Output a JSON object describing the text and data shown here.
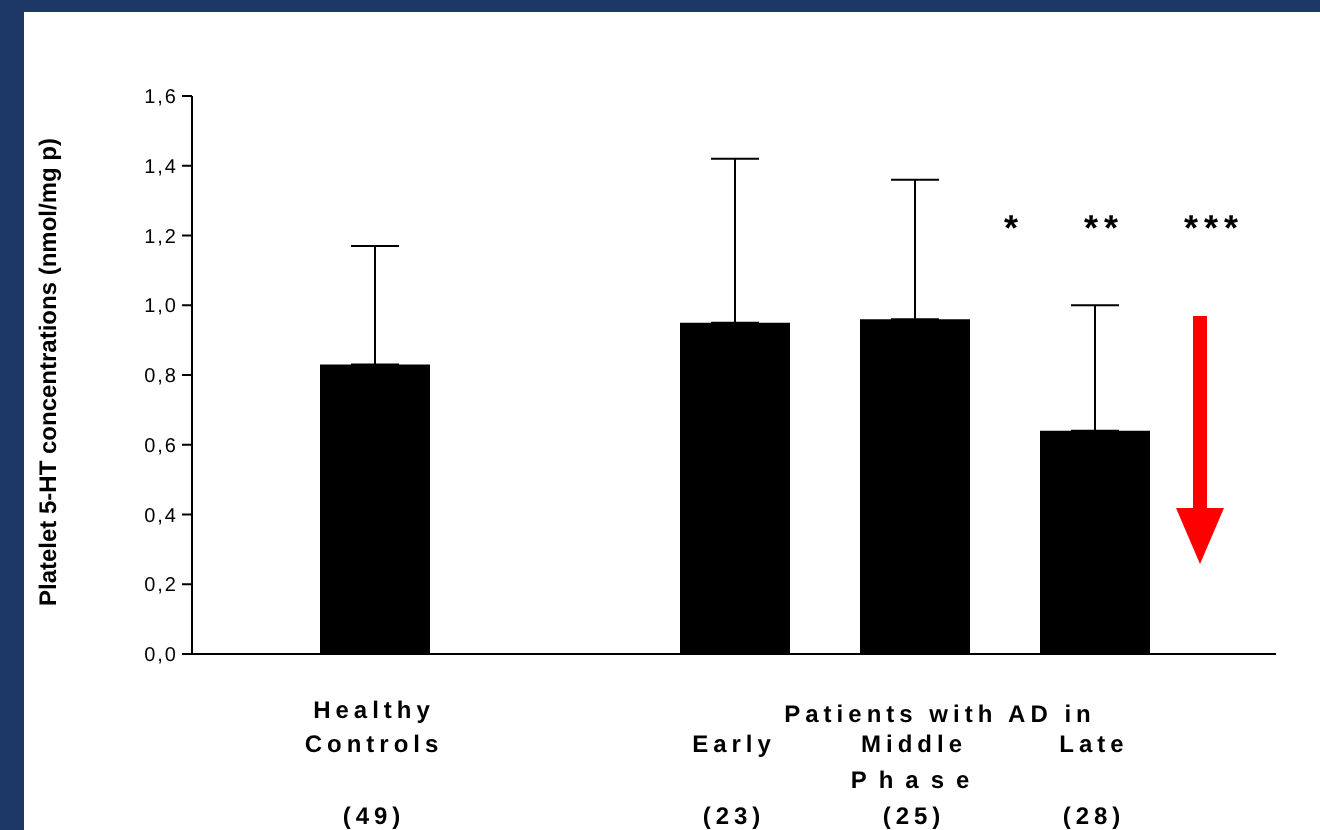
{
  "chart_data": {
    "type": "bar",
    "ylabel": "Platelet 5-HT concentrations (nmol/mg p)",
    "categories": [
      "Healthy\nControls\n(49)",
      null,
      "Early\n(23)",
      "Middle\n(25)",
      "Late\n(28)"
    ],
    "values": [
      0.83,
      null,
      0.95,
      0.96,
      0.64
    ],
    "errors": [
      [
        0.83,
        1.17
      ],
      null,
      [
        0.95,
        1.42
      ],
      [
        0.96,
        1.36
      ],
      [
        0.64,
        1.0
      ]
    ],
    "color": "#000000",
    "ylim": [
      0,
      1.6
    ],
    "yticks": [
      {
        "value": 0,
        "label": "0,0"
      },
      {
        "value": 0.2,
        "label": "0,2"
      },
      {
        "value": 0.4,
        "label": "0,4"
      },
      {
        "value": 0.6,
        "label": "0,6"
      },
      {
        "value": 0.8,
        "label": "0,8"
      },
      {
        "value": 1.0,
        "label": "1,0"
      },
      {
        "value": 1.2,
        "label": "1,2"
      },
      {
        "value": 1.4,
        "label": "1,4"
      },
      {
        "value": 1.6,
        "label": "1,6"
      }
    ],
    "annotations": [
      "Patients with AD in",
      "Phase",
      "* ** ***"
    ]
  }
}
